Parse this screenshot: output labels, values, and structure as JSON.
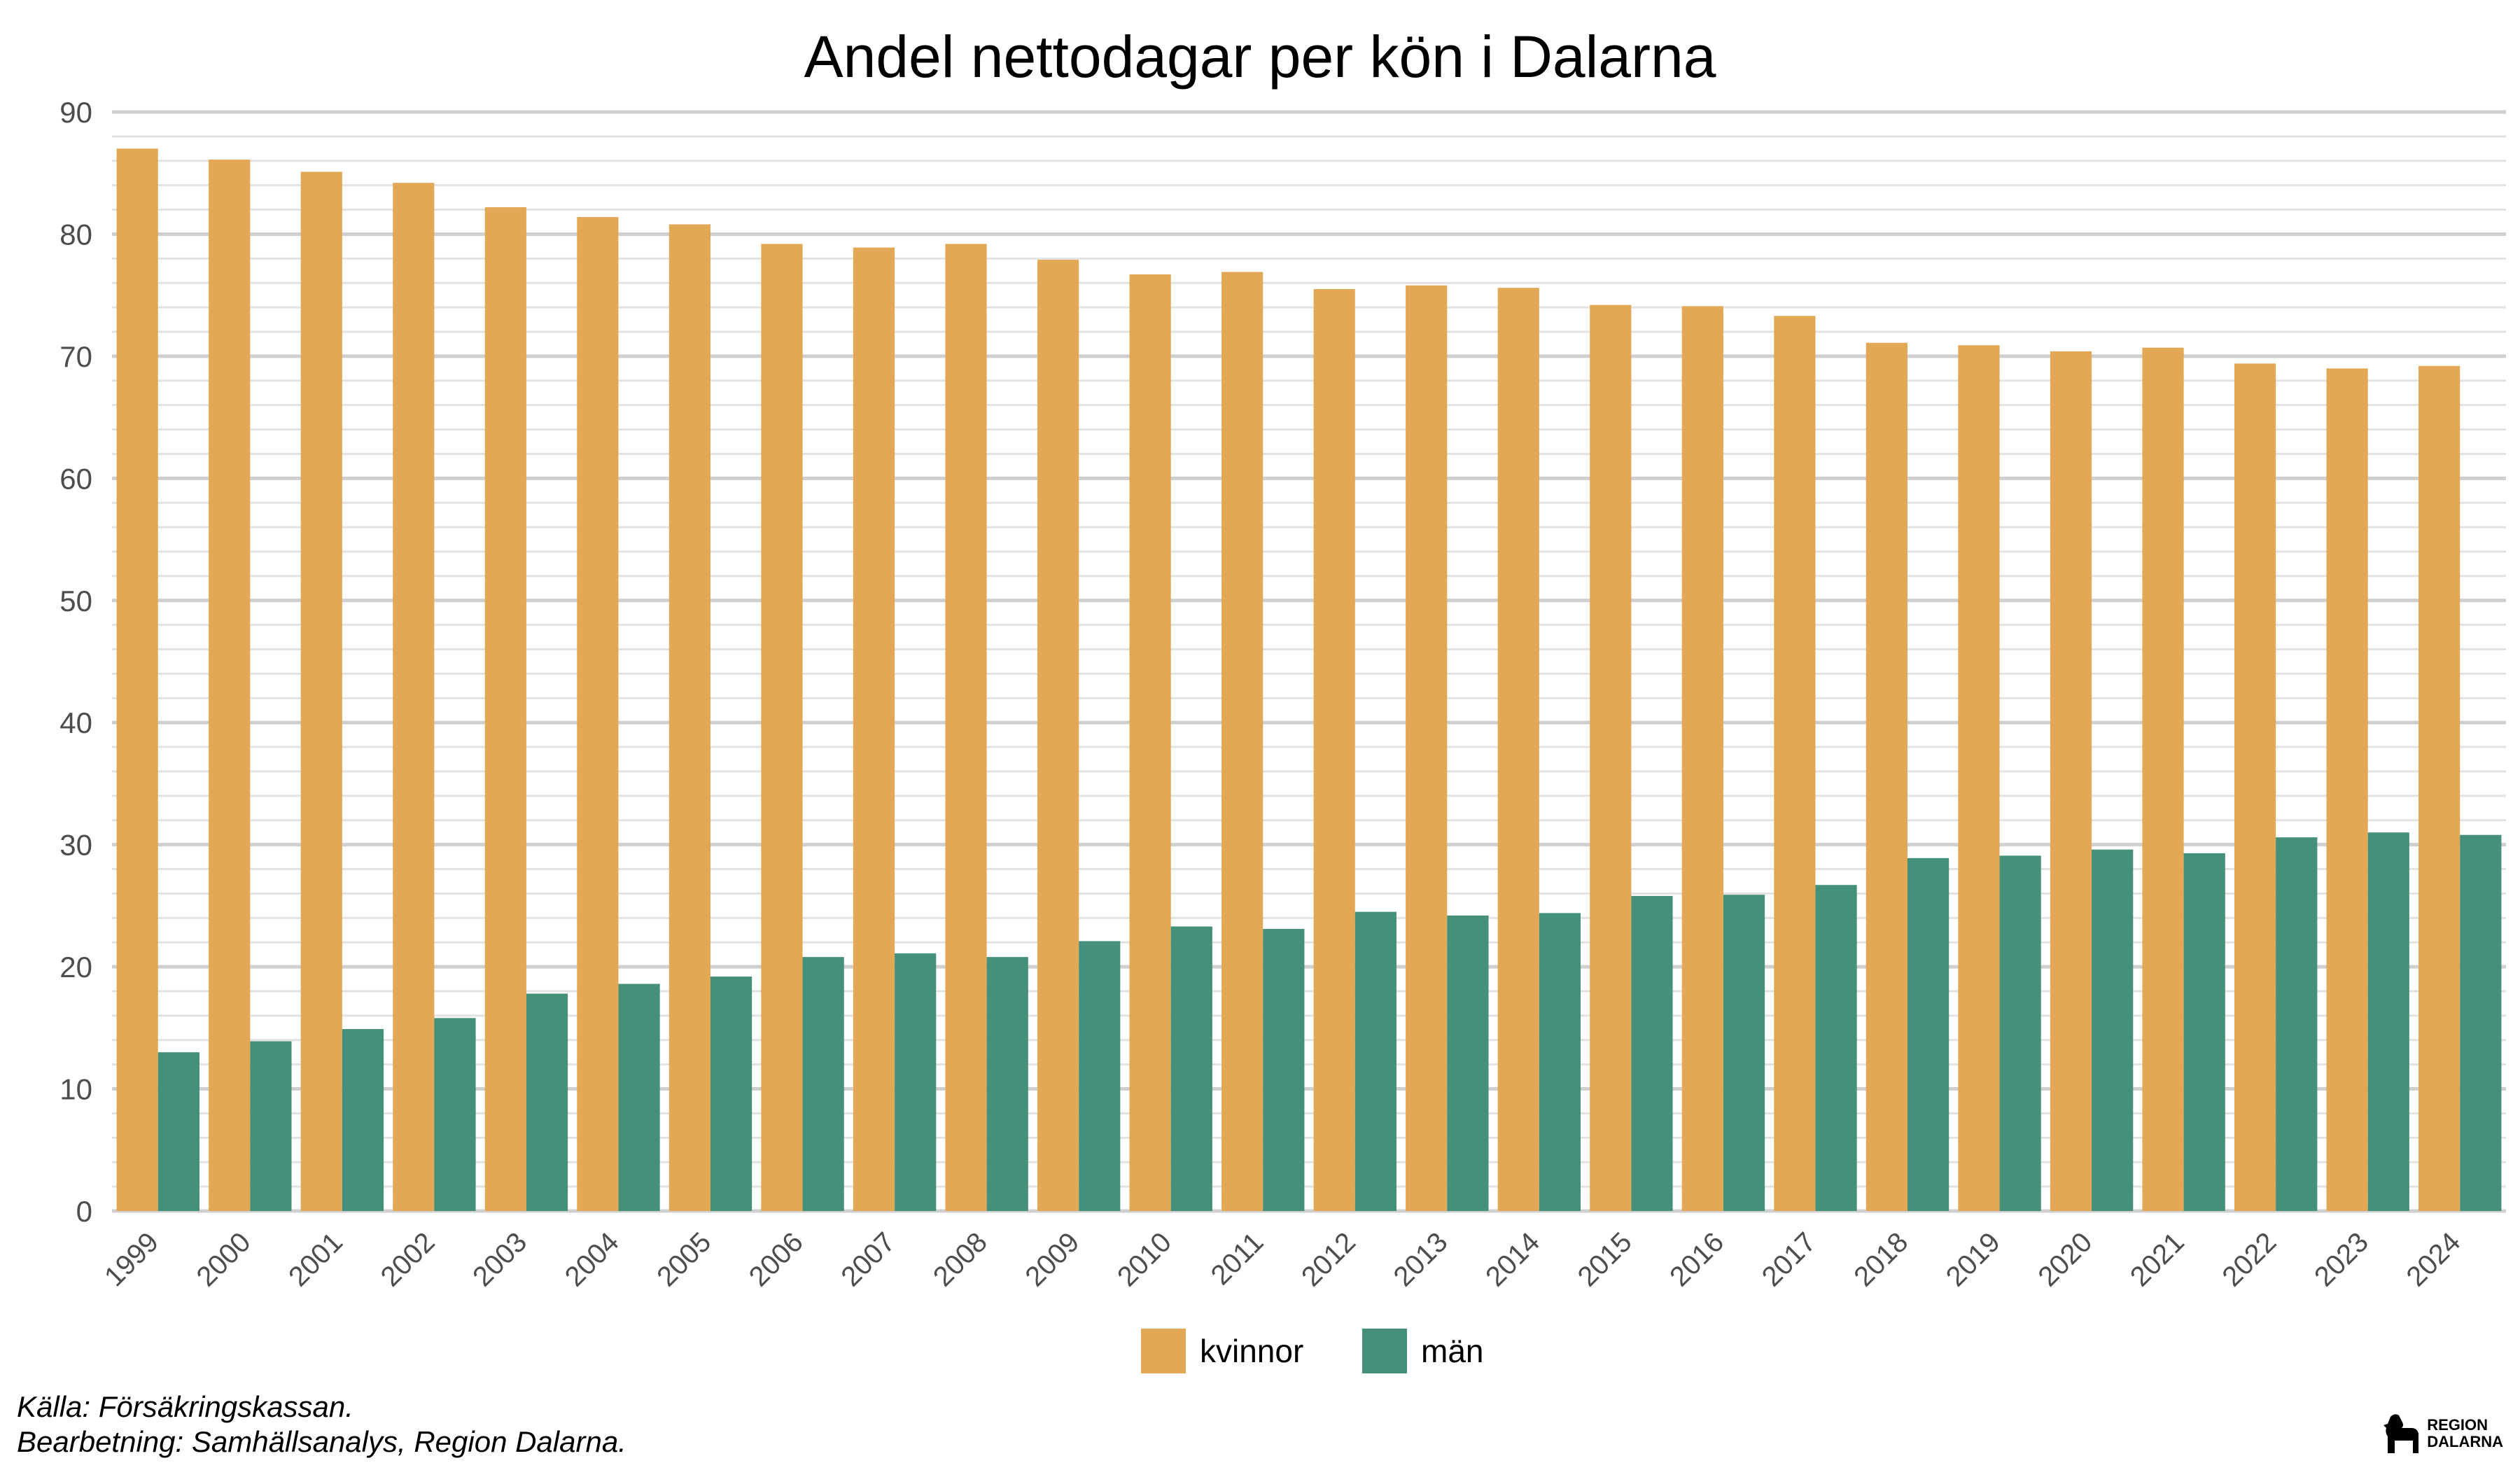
{
  "chart_data": {
    "type": "bar",
    "title": "Andel nettodagar per kön i Dalarna",
    "xlabel": "",
    "ylabel": "",
    "ylim": [
      0,
      90
    ],
    "yticks": [
      0,
      10,
      20,
      30,
      40,
      50,
      60,
      70,
      80,
      90
    ],
    "grid": true,
    "legend_position": "bottom",
    "categories": [
      "1999",
      "2000",
      "2001",
      "2002",
      "2003",
      "2004",
      "2005",
      "2006",
      "2007",
      "2008",
      "2009",
      "2010",
      "2011",
      "2012",
      "2013",
      "2014",
      "2015",
      "2016",
      "2017",
      "2018",
      "2019",
      "2020",
      "2021",
      "2022",
      "2023",
      "2024"
    ],
    "series": [
      {
        "name": "kvinnor",
        "color": "#e2a855",
        "values": [
          87.0,
          86.1,
          85.1,
          84.2,
          82.2,
          81.4,
          80.8,
          79.2,
          78.9,
          79.2,
          77.9,
          76.7,
          76.9,
          75.5,
          75.8,
          75.6,
          74.2,
          74.1,
          73.3,
          71.1,
          70.9,
          70.4,
          70.7,
          69.4,
          69.0,
          69.2
        ]
      },
      {
        "name": "män",
        "color": "#45907a",
        "values": [
          13.0,
          13.9,
          14.9,
          15.8,
          17.8,
          18.6,
          19.2,
          20.8,
          21.1,
          20.8,
          22.1,
          23.3,
          23.1,
          24.5,
          24.2,
          24.4,
          25.8,
          25.9,
          26.7,
          28.9,
          29.1,
          29.6,
          29.3,
          30.6,
          31.0,
          30.8
        ]
      }
    ]
  },
  "caption": {
    "source": "Källa: Försäkringskassan.",
    "processing": "Bearbetning: Samhällsanalys, Region Dalarna."
  },
  "logo": {
    "line1": "REGION",
    "line2": "DALARNA",
    "icon": "dala-horse-icon"
  }
}
